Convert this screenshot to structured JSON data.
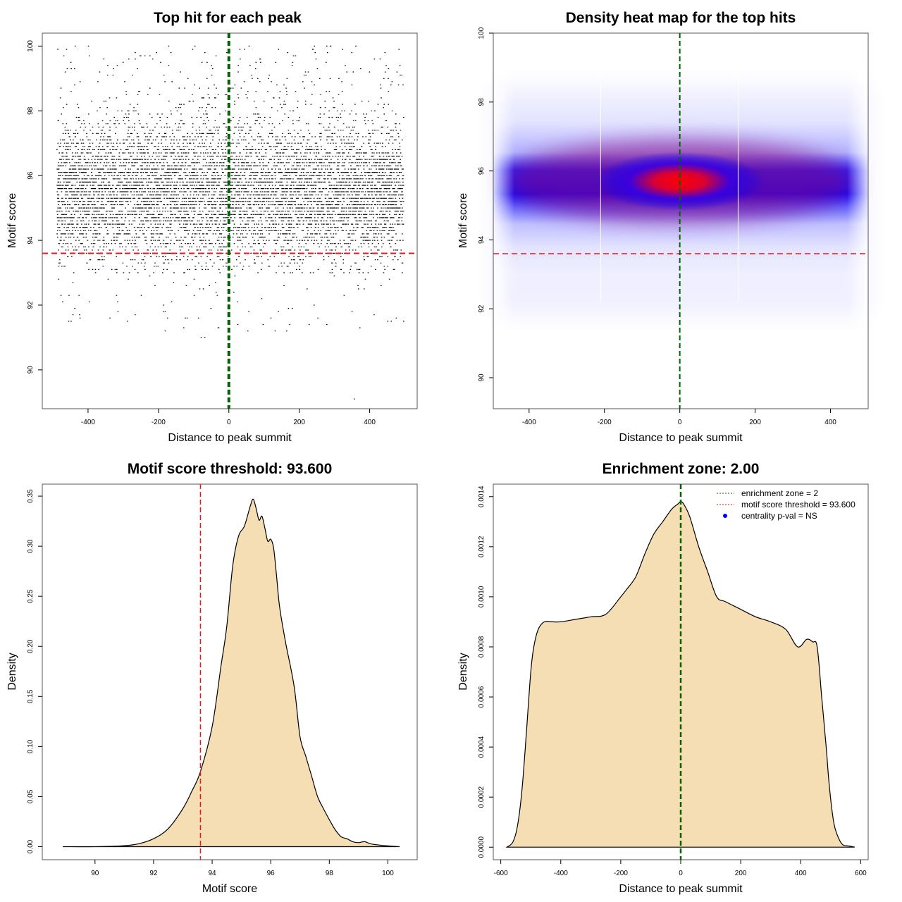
{
  "colors": {
    "area_fill": "#f5deb3",
    "threshold_line": "#e31a1c",
    "zone_line": "#006400",
    "heat_low": "#0000ff",
    "heat_high": "#ff0000",
    "centrality_marker": "#0000ff"
  },
  "chart_data": [
    {
      "id": "scatter",
      "type": "scatter",
      "title": "Top hit for each peak",
      "xlabel": "Distance to peak summit",
      "ylabel": "Motif score",
      "xlim": [
        -530,
        535
      ],
      "ylim": [
        88.8,
        100.4
      ],
      "xticks": [
        -400,
        -200,
        0,
        200,
        400
      ],
      "yticks": [
        90,
        92,
        94,
        96,
        98,
        100
      ],
      "description_values": {
        "x_range": [
          -490,
          495
        ],
        "y_dense_range": [
          93.0,
          99.5
        ],
        "y_sparse_min": 89.1,
        "y_max": 100.0,
        "step": 0.1
      },
      "hlines": [
        {
          "y": 93.6,
          "style": "dashed",
          "color_key": "threshold_line"
        }
      ],
      "vlines": [
        {
          "x": 0,
          "style": "dashed",
          "color_key": "zone_line"
        }
      ],
      "grid": false
    },
    {
      "id": "heatmap",
      "type": "heatmap",
      "title": "Density heat map for the top hits",
      "xlabel": "Distance to peak summit",
      "ylabel": "Motif score",
      "xlim": [
        -495,
        500
      ],
      "ylim": [
        89.1,
        100.0
      ],
      "xticks": [
        -400,
        -200,
        0,
        200,
        400
      ],
      "yticks": [
        90,
        92,
        94,
        96,
        98,
        100
      ],
      "hotspot": {
        "x": 0,
        "y": 95.7
      },
      "density_band_y": [
        94.3,
        96.9
      ],
      "hlines": [
        {
          "y": 93.6,
          "style": "dashed",
          "color_key": "threshold_line"
        }
      ],
      "vlines": [
        {
          "x": 0,
          "style": "dashed",
          "color_key": "zone_line"
        }
      ],
      "grid": false
    },
    {
      "id": "score_density",
      "type": "area",
      "title": "Motif score threshold: 93.600",
      "xlabel": "Motif score",
      "ylabel": "Density",
      "xlim": [
        88.2,
        101.0
      ],
      "ylim": [
        -0.013,
        0.362
      ],
      "xticks": [
        90,
        92,
        94,
        96,
        98,
        100
      ],
      "yticks": [
        0.0,
        0.05,
        0.1,
        0.15,
        0.2,
        0.25,
        0.3,
        0.35
      ],
      "ytick_labels": [
        "0.00",
        "0.05",
        "0.10",
        "0.15",
        "0.20",
        "0.25",
        "0.30",
        "0.35"
      ],
      "x": [
        88.9,
        90.0,
        91.0,
        91.5,
        92.0,
        92.5,
        93.0,
        93.3,
        93.6,
        94.0,
        94.3,
        94.5,
        94.7,
        94.9,
        95.1,
        95.3,
        95.4,
        95.5,
        95.6,
        95.7,
        95.8,
        95.9,
        96.0,
        96.1,
        96.2,
        96.3,
        96.5,
        96.8,
        97.0,
        97.2,
        97.4,
        97.6,
        97.8,
        98.0,
        98.2,
        98.4,
        98.6,
        98.8,
        99.0,
        99.2,
        99.4,
        99.6,
        100.0,
        100.4
      ],
      "y": [
        0.0,
        0.0,
        0.001,
        0.003,
        0.008,
        0.018,
        0.038,
        0.055,
        0.075,
        0.12,
        0.18,
        0.22,
        0.28,
        0.31,
        0.32,
        0.34,
        0.347,
        0.338,
        0.326,
        0.33,
        0.318,
        0.305,
        0.307,
        0.298,
        0.27,
        0.24,
        0.205,
        0.16,
        0.11,
        0.09,
        0.07,
        0.05,
        0.038,
        0.027,
        0.017,
        0.01,
        0.008,
        0.005,
        0.004,
        0.005,
        0.003,
        0.002,
        0.0008,
        0.0
      ],
      "vlines": [
        {
          "x": 93.6,
          "style": "dashed",
          "color_key": "threshold_line"
        }
      ],
      "grid": false
    },
    {
      "id": "distance_density",
      "type": "area",
      "title": "Enrichment zone: 2.00",
      "xlabel": "Distance to peak summit",
      "ylabel": "Density",
      "xlim": [
        -625,
        625
      ],
      "ylim": [
        -5e-05,
        0.00145
      ],
      "xticks": [
        -600,
        -400,
        -200,
        0,
        200,
        400,
        600
      ],
      "yticks": [
        0.0,
        0.0002,
        0.0004,
        0.0006,
        0.0008,
        0.001,
        0.0012,
        0.0014
      ],
      "ytick_labels": [
        "0.0000",
        "0.0002",
        "0.0004",
        "0.0006",
        "0.0008",
        "0.0010",
        "0.0012",
        "0.0014"
      ],
      "x": [
        -580,
        -560,
        -545,
        -530,
        -515,
        -500,
        -490,
        -475,
        -455,
        -430,
        -400,
        -350,
        -300,
        -250,
        -200,
        -180,
        -150,
        -120,
        -90,
        -60,
        -30,
        -10,
        0,
        10,
        30,
        60,
        90,
        120,
        150,
        200,
        250,
        300,
        350,
        390,
        420,
        440,
        455,
        470,
        485,
        495,
        510,
        525,
        540,
        560,
        580
      ],
      "y": [
        0.0,
        2e-05,
        8e-05,
        0.00022,
        0.00045,
        0.0007,
        0.0008,
        0.00087,
        0.0009,
        0.0009,
        0.0009,
        0.00091,
        0.00092,
        0.00093,
        0.001,
        0.00103,
        0.00108,
        0.00117,
        0.00125,
        0.0013,
        0.00135,
        0.00137,
        0.00138,
        0.00137,
        0.00132,
        0.0012,
        0.0011,
        0.001,
        0.00098,
        0.00095,
        0.00092,
        0.0009,
        0.00087,
        0.0008,
        0.00083,
        0.00082,
        0.0008,
        0.0006,
        0.0004,
        0.00025,
        0.0001,
        4e-05,
        1e-05,
        5e-06,
        0.0
      ],
      "vlines": [
        {
          "x": 0,
          "style": "dashed",
          "color_key": "zone_line"
        }
      ],
      "legend": {
        "position": "top-right",
        "entries": [
          {
            "label": "enrichment zone = 2",
            "marker": "dotted-line",
            "color_key": "zone_line"
          },
          {
            "label": "motif score threshold = 93.600",
            "marker": "dotted-line",
            "color_key": "threshold_line"
          },
          {
            "label": "centrality p-val = NS",
            "marker": "dot",
            "color_key": "centrality_marker"
          }
        ]
      },
      "grid": false
    }
  ]
}
